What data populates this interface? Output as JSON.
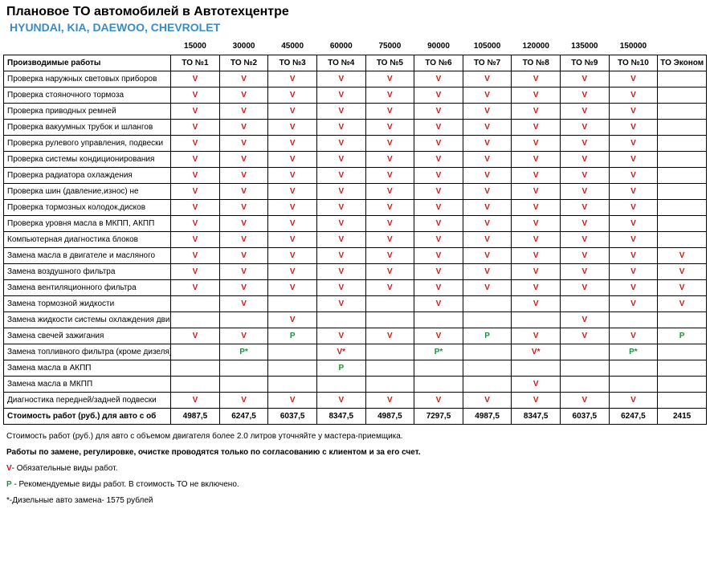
{
  "colors": {
    "v": "#c02020",
    "p": "#209040",
    "subtitle": "#3a8cc4",
    "text": "#000000",
    "bg": "#ffffff"
  },
  "title": "Плановое ТО автомобилей в Автотехцентре",
  "subtitle": "HYUNDAI, KIA, DAEWOO, CHEVROLET",
  "works_header": "Производимые работы",
  "mileage": [
    "15000",
    "30000",
    "45000",
    "60000",
    "75000",
    "90000",
    "105000",
    "120000",
    "135000",
    "150000",
    ""
  ],
  "to_labels": [
    "ТО №1",
    "ТО №2",
    "ТО №3",
    "ТО №4",
    "ТО №5",
    "ТО №6",
    "ТО №7",
    "ТО №8",
    "ТО №9",
    "ТО №10",
    "ТО Эконом"
  ],
  "marks": {
    "V": "V",
    "P": "P",
    "Ps": "P*",
    "Vs": "V*",
    "E": ""
  },
  "rows": [
    {
      "label": "Проверка наружных световых приборов",
      "cells": [
        "V",
        "V",
        "V",
        "V",
        "V",
        "V",
        "V",
        "V",
        "V",
        "V",
        "E"
      ]
    },
    {
      "label": "Проверка стояночного тормоза",
      "cells": [
        "V",
        "V",
        "V",
        "V",
        "V",
        "V",
        "V",
        "V",
        "V",
        "V",
        "E"
      ]
    },
    {
      "label": "Проверка приводных ремней",
      "cells": [
        "V",
        "V",
        "V",
        "V",
        "V",
        "V",
        "V",
        "V",
        "V",
        "V",
        "E"
      ]
    },
    {
      "label": "Проверка вакуумных трубок и шлангов",
      "cells": [
        "V",
        "V",
        "V",
        "V",
        "V",
        "V",
        "V",
        "V",
        "V",
        "V",
        "E"
      ]
    },
    {
      "label": "Проверка рулевого управления, подвески",
      "cells": [
        "V",
        "V",
        "V",
        "V",
        "V",
        "V",
        "V",
        "V",
        "V",
        "V",
        "E"
      ]
    },
    {
      "label": "Проверка системы кондиционирования",
      "cells": [
        "V",
        "V",
        "V",
        "V",
        "V",
        "V",
        "V",
        "V",
        "V",
        "V",
        "E"
      ]
    },
    {
      "label": "Проверка радиатора охлаждения",
      "cells": [
        "V",
        "V",
        "V",
        "V",
        "V",
        "V",
        "V",
        "V",
        "V",
        "V",
        "E"
      ]
    },
    {
      "label": "Проверка шин (давление,износ) не",
      "cells": [
        "V",
        "V",
        "V",
        "V",
        "V",
        "V",
        "V",
        "V",
        "V",
        "V",
        "E"
      ]
    },
    {
      "label": "Проверка тормозных колодок,дисков",
      "cells": [
        "V",
        "V",
        "V",
        "V",
        "V",
        "V",
        "V",
        "V",
        "V",
        "V",
        "E"
      ]
    },
    {
      "label": "Проверка уровня масла в МКПП, АКПП",
      "cells": [
        "V",
        "V",
        "V",
        "V",
        "V",
        "V",
        "V",
        "V",
        "V",
        "V",
        "E"
      ]
    },
    {
      "label": "Компьютерная диагностика блоков",
      "cells": [
        "V",
        "V",
        "V",
        "V",
        "V",
        "V",
        "V",
        "V",
        "V",
        "V",
        "E"
      ]
    },
    {
      "label": "Замена масла в двигателе и масляного",
      "cells": [
        "V",
        "V",
        "V",
        "V",
        "V",
        "V",
        "V",
        "V",
        "V",
        "V",
        "V"
      ]
    },
    {
      "label": "Замена воздушного фильтра",
      "cells": [
        "V",
        "V",
        "V",
        "V",
        "V",
        "V",
        "V",
        "V",
        "V",
        "V",
        "V"
      ]
    },
    {
      "label": "Замена вентиляционного фильтра",
      "cells": [
        "V",
        "V",
        "V",
        "V",
        "V",
        "V",
        "V",
        "V",
        "V",
        "V",
        "V"
      ]
    },
    {
      "label": "Замена тормозной жидкости",
      "cells": [
        "E",
        "V",
        "E",
        "V",
        "E",
        "V",
        "E",
        "V",
        "E",
        "V",
        "V"
      ]
    },
    {
      "label": "Замена жидкости системы охлаждения двигателя",
      "cells": [
        "E",
        "E",
        "V",
        "E",
        "E",
        "E",
        "E",
        "E",
        "V",
        "E",
        "E"
      ]
    },
    {
      "label": "Замена свечей зажигания",
      "cells": [
        "V",
        "V",
        "P",
        "V",
        "V",
        "V",
        "P",
        "V",
        "V",
        "V",
        "P"
      ]
    },
    {
      "label": "Замена топливного фильтра (кроме дизеля)",
      "cells": [
        "E",
        "Ps",
        "E",
        "Vs",
        "E",
        "Ps",
        "E",
        "Vs",
        "E",
        "Ps",
        "E"
      ]
    },
    {
      "label": "Замена масла в АКПП",
      "cells": [
        "E",
        "E",
        "E",
        "P",
        "E",
        "E",
        "E",
        "E",
        "E",
        "E",
        "E"
      ]
    },
    {
      "label": "Замена масла в МКПП",
      "cells": [
        "E",
        "E",
        "E",
        "E",
        "E",
        "E",
        "E",
        "V",
        "E",
        "E",
        "E"
      ]
    },
    {
      "label": "Диагностика передней/задней подвески",
      "cells": [
        "V",
        "V",
        "V",
        "V",
        "V",
        "V",
        "V",
        "V",
        "V",
        "V",
        "E"
      ]
    }
  ],
  "cost_label": "Стоимость работ (руб.) для авто с об",
  "costs": [
    "4987,5",
    "6247,5",
    "6037,5",
    "8347,5",
    "4987,5",
    "7297,5",
    "4987,5",
    "8347,5",
    "6037,5",
    "6247,5",
    "2415"
  ],
  "notes": {
    "line1": "Стоимость работ (руб.) для авто с объемом двигателя более 2.0 литров уточняйте у мастера-приемщика.",
    "line2": "Работы по замене, регулировке, очистке проводятся только по согласованию с клиентом и за его счет.",
    "legendV_prefix": "V",
    "legendV_text": "- Обязательные виды работ.",
    "legendP_prefix": "P",
    "legendP_text": " - Рекомендуемые виды работ. В стоимость ТО не включено.",
    "star": "*-Дизельные авто замена- 1575 рублей"
  }
}
